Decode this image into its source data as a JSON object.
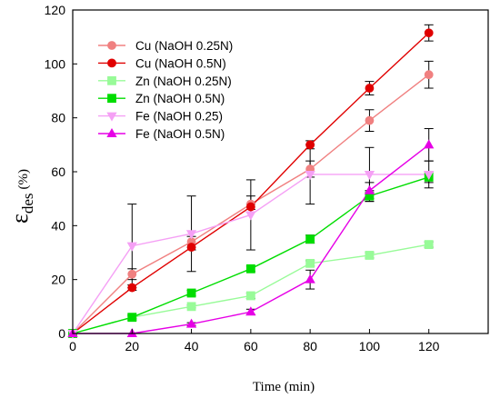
{
  "chart_data": {
    "type": "line",
    "title": "",
    "xlabel": "Time (min)",
    "ylabel": {
      "main": "ε",
      "sub": "des",
      "unit": "(%)"
    },
    "x": [
      0,
      20,
      40,
      60,
      80,
      100,
      120
    ],
    "xlim": [
      0,
      140
    ],
    "ylim": [
      0,
      120
    ],
    "xticks": [
      "0",
      "20",
      "40",
      "60",
      "80",
      "100",
      "120"
    ],
    "yticks": [
      "0",
      "20",
      "40",
      "60",
      "80",
      "100",
      "120"
    ],
    "grid": false,
    "legend_position": "top-left",
    "series": [
      {
        "name": "Cu (NaOH 0.25N)",
        "color": "#F08080",
        "marker": "circle",
        "values": [
          0,
          22,
          34,
          48,
          61,
          79,
          96
        ],
        "errors": [
          0,
          2,
          2,
          3,
          3,
          4,
          5
        ]
      },
      {
        "name": "Cu (NaOH 0.5N)",
        "color": "#E00000",
        "marker": "circle",
        "values": [
          0,
          17,
          32,
          47,
          70,
          91,
          111.5
        ],
        "errors": [
          0,
          1,
          1,
          1,
          1.5,
          2.5,
          3
        ]
      },
      {
        "name": "Zn (NaOH 0.25N)",
        "color": "#98FB98",
        "marker": "square",
        "values": [
          0,
          6,
          10,
          14,
          26,
          29,
          33
        ],
        "errors": [
          0,
          0.5,
          0.5,
          1,
          1,
          1,
          1
        ]
      },
      {
        "name": "Zn (NaOH 0.5N)",
        "color": "#00DD00",
        "marker": "square",
        "values": [
          0,
          6,
          15,
          24,
          35,
          51,
          58
        ],
        "errors": [
          0,
          1,
          1,
          1,
          1.5,
          2,
          2
        ]
      },
      {
        "name": "Fe (NaOH 0.25)",
        "color": "#F5A0F5",
        "marker": "triangle-down",
        "values": [
          0,
          32.5,
          37,
          44,
          59,
          59,
          59
        ],
        "errors": [
          0,
          15.5,
          14,
          13,
          11,
          10,
          5
        ]
      },
      {
        "name": "Fe (NaOH 0.5N)",
        "color": "#E600E6",
        "marker": "triangle-up",
        "values": [
          0,
          0,
          3.5,
          8,
          20,
          53,
          70
        ],
        "errors": [
          0,
          0,
          0.5,
          1,
          3.5,
          3,
          6
        ]
      }
    ]
  }
}
